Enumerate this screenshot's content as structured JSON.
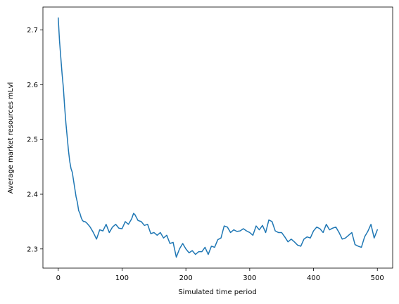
{
  "chart_data": {
    "type": "line",
    "title": "",
    "xlabel": "Simulated time period",
    "ylabel": "Average market resources mLvl",
    "xlim": [
      -24,
      524
    ],
    "ylim": [
      2.265,
      2.742
    ],
    "xticks": [
      0,
      100,
      200,
      300,
      400,
      500
    ],
    "yticks": [
      2.3,
      2.4,
      2.5,
      2.6,
      2.7
    ],
    "xtick_labels": [
      "0",
      "100",
      "200",
      "300",
      "400",
      "500"
    ],
    "ytick_labels": [
      "2.3",
      "2.4",
      "2.5",
      "2.6",
      "2.7"
    ],
    "grid": false,
    "legend": false,
    "series": [
      {
        "color": "#1f77b4",
        "x": [
          0,
          2,
          4,
          6,
          8,
          10,
          12,
          14,
          16,
          18,
          20,
          22,
          24,
          26,
          28,
          30,
          32,
          34,
          36,
          38,
          40,
          42,
          45,
          48,
          50,
          55,
          60,
          65,
          70,
          75,
          80,
          85,
          90,
          95,
          100,
          105,
          110,
          115,
          118,
          120,
          125,
          130,
          135,
          140,
          145,
          150,
          155,
          160,
          165,
          170,
          175,
          180,
          185,
          190,
          195,
          200,
          205,
          210,
          215,
          220,
          225,
          230,
          235,
          240,
          245,
          250,
          255,
          260,
          265,
          270,
          275,
          280,
          285,
          290,
          295,
          300,
          305,
          310,
          315,
          320,
          325,
          330,
          335,
          340,
          345,
          350,
          355,
          360,
          365,
          370,
          375,
          380,
          385,
          390,
          395,
          400,
          405,
          410,
          415,
          420,
          425,
          430,
          435,
          440,
          445,
          450,
          455,
          460,
          465,
          470,
          475,
          480,
          485,
          490,
          495,
          500
        ],
        "y": [
          2.722,
          2.68,
          2.65,
          2.62,
          2.595,
          2.56,
          2.53,
          2.505,
          2.48,
          2.46,
          2.447,
          2.44,
          2.425,
          2.41,
          2.395,
          2.385,
          2.37,
          2.365,
          2.357,
          2.352,
          2.35,
          2.35,
          2.347,
          2.343,
          2.34,
          2.33,
          2.318,
          2.335,
          2.333,
          2.345,
          2.33,
          2.34,
          2.345,
          2.338,
          2.337,
          2.35,
          2.345,
          2.355,
          2.365,
          2.363,
          2.352,
          2.35,
          2.343,
          2.345,
          2.328,
          2.33,
          2.325,
          2.33,
          2.32,
          2.325,
          2.31,
          2.312,
          2.285,
          2.3,
          2.31,
          2.3,
          2.293,
          2.297,
          2.29,
          2.295,
          2.295,
          2.303,
          2.29,
          2.305,
          2.303,
          2.317,
          2.32,
          2.342,
          2.34,
          2.33,
          2.335,
          2.332,
          2.333,
          2.337,
          2.333,
          2.33,
          2.325,
          2.342,
          2.335,
          2.343,
          2.33,
          2.353,
          2.35,
          2.333,
          2.33,
          2.33,
          2.322,
          2.313,
          2.318,
          2.313,
          2.307,
          2.305,
          2.318,
          2.322,
          2.32,
          2.333,
          2.34,
          2.337,
          2.33,
          2.345,
          2.335,
          2.338,
          2.34,
          2.33,
          2.318,
          2.32,
          2.325,
          2.33,
          2.308,
          2.305,
          2.303,
          2.322,
          2.332,
          2.345,
          2.32,
          2.335
        ]
      }
    ]
  }
}
